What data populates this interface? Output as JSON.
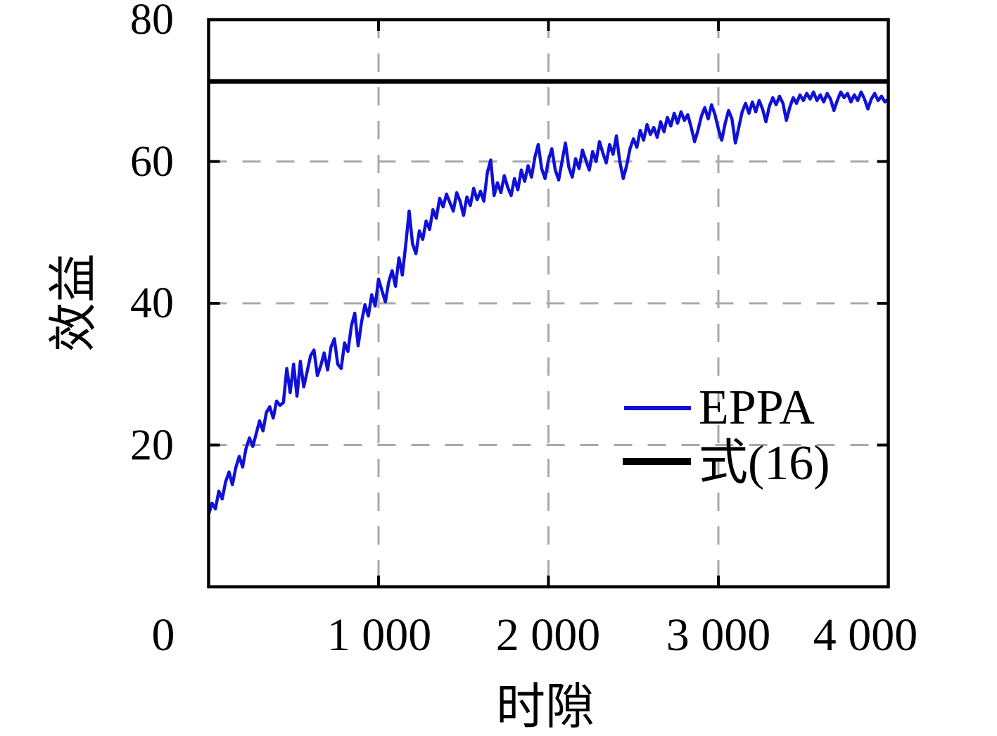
{
  "figure": {
    "background": "#ffffff",
    "frame_color": "#000000",
    "grid_color": "#a9a9a9"
  },
  "chart_data": {
    "type": "line",
    "title": "",
    "xlabel": "时隙",
    "ylabel": "效益",
    "xlim": [
      0,
      4000
    ],
    "ylim": [
      0,
      80
    ],
    "grid": {
      "on": true,
      "style": "dashed",
      "color": "#a9a9a9",
      "x_values": [
        1000,
        2000,
        3000
      ],
      "y_values": [
        20,
        40,
        60
      ]
    },
    "x_ticks": {
      "values": [
        0,
        1000,
        2000,
        3000,
        4000
      ],
      "labels": [
        "0",
        "1 000",
        "2 000",
        "3 000",
        "4 000"
      ]
    },
    "y_ticks": {
      "values": [
        20,
        40,
        60,
        80
      ],
      "labels": [
        "20",
        "40",
        "60",
        "80"
      ]
    },
    "legend": {
      "position": "lower right",
      "frame": false,
      "entries": [
        {
          "label": "EPPA",
          "color": "#1010d7",
          "line_width": 6
        },
        {
          "label": "式(16)",
          "color": "#000000",
          "line_width": 10
        }
      ]
    },
    "series": [
      {
        "name": "EPPA",
        "type": "line",
        "color": "#1010d7",
        "line_width": 4.5,
        "x_start": 0,
        "x_step": 20,
        "values": [
          10.2,
          11.8,
          11.0,
          13.5,
          12.4,
          14.8,
          16.2,
          14.4,
          16.8,
          18.4,
          16.9,
          19.5,
          21.0,
          19.8,
          21.6,
          23.4,
          22.0,
          24.6,
          25.4,
          23.8,
          26.2,
          25.6,
          26.0,
          30.8,
          27.4,
          31.4,
          26.9,
          31.8,
          28.2,
          30.4,
          32.6,
          33.4,
          29.8,
          31.2,
          33.0,
          30.6,
          33.8,
          35.0,
          31.4,
          30.8,
          34.4,
          33.2,
          36.8,
          38.6,
          34.0,
          37.4,
          39.8,
          38.2,
          41.2,
          39.6,
          43.4,
          41.8,
          40.2,
          43.0,
          44.6,
          42.4,
          46.4,
          44.0,
          48.2,
          53.0,
          48.4,
          47.0,
          50.2,
          49.0,
          51.6,
          50.4,
          53.2,
          52.0,
          54.8,
          53.6,
          55.4,
          54.2,
          53.0,
          55.6,
          54.4,
          52.4,
          55.0,
          53.8,
          56.2,
          54.6,
          55.8,
          54.4,
          58.4,
          60.2,
          55.2,
          57.0,
          55.6,
          58.0,
          56.4,
          55.2,
          57.6,
          56.0,
          58.8,
          57.2,
          59.4,
          57.8,
          60.6,
          62.4,
          59.0,
          57.6,
          60.2,
          61.8,
          58.8,
          57.4,
          60.0,
          62.6,
          59.2,
          57.8,
          60.4,
          59.0,
          61.6,
          60.2,
          58.8,
          61.4,
          60.0,
          62.8,
          61.2,
          59.8,
          62.4,
          61.0,
          63.6,
          60.0,
          57.6,
          59.4,
          61.8,
          63.2,
          62.0,
          64.4,
          63.0,
          65.2,
          63.8,
          64.8,
          63.4,
          65.6,
          64.2,
          66.2,
          65.0,
          66.8,
          65.4,
          67.0,
          65.8,
          66.6,
          64.8,
          62.8,
          64.4,
          66.4,
          67.6,
          66.0,
          68.0,
          66.6,
          64.6,
          63.0,
          65.4,
          67.2,
          66.0,
          62.6,
          64.8,
          67.0,
          68.2,
          66.8,
          68.4,
          67.0,
          68.6,
          67.4,
          65.6,
          67.8,
          69.0,
          68.0,
          69.2,
          68.2,
          65.8,
          67.6,
          69.0,
          68.2,
          69.4,
          68.6,
          69.6,
          68.8,
          69.8,
          68.6,
          69.4,
          68.4,
          69.6,
          68.8,
          67.2,
          68.6,
          69.8,
          69.0,
          69.6,
          68.4,
          69.4,
          68.6,
          69.8,
          68.8,
          67.4,
          68.8,
          69.6,
          68.6,
          69.2,
          68.4,
          68.8
        ]
      },
      {
        "name": "式(16)",
        "type": "hline",
        "color": "#000000",
        "line_width": 6.5,
        "value": 71.3
      }
    ]
  }
}
